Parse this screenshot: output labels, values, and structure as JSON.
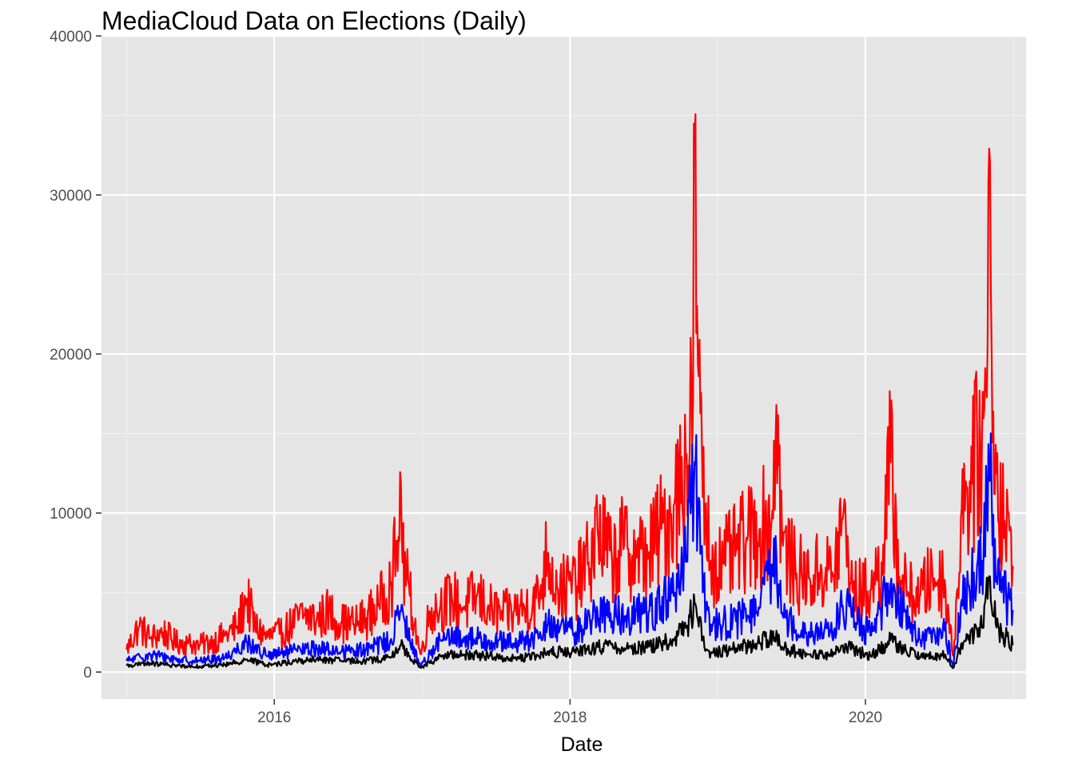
{
  "chart_data": {
    "type": "line",
    "title": "MediaCloud Data on Elections (Daily)",
    "xlabel": "Date",
    "ylabel": "",
    "xlim": [
      "2014-10-31",
      "2021-02-01"
    ],
    "ylim": [
      -1700,
      40000
    ],
    "x_ticks": [
      "2016",
      "2018",
      "2020"
    ],
    "y_ticks": [
      0,
      10000,
      20000,
      30000,
      40000
    ],
    "grid": true,
    "legend": "none",
    "series": [
      {
        "color": "#ff0000",
        "points": [
          [
            "2015-01-01",
            1400
          ],
          [
            "2015-02-01",
            2900
          ],
          [
            "2015-03-01",
            2100
          ],
          [
            "2015-04-01",
            2500
          ],
          [
            "2015-05-01",
            1900
          ],
          [
            "2015-06-01",
            1800
          ],
          [
            "2015-07-01",
            1700
          ],
          [
            "2015-08-01",
            1900
          ],
          [
            "2015-09-01",
            2300
          ],
          [
            "2015-10-01",
            2800
          ],
          [
            "2015-10-25",
            4700
          ],
          [
            "2015-11-15",
            2800
          ],
          [
            "2015-12-15",
            2200
          ],
          [
            "2016-01-15",
            2400
          ],
          [
            "2016-02-15",
            3000
          ],
          [
            "2016-03-15",
            3600
          ],
          [
            "2016-04-15",
            3300
          ],
          [
            "2016-05-15",
            3800
          ],
          [
            "2016-06-15",
            3100
          ],
          [
            "2016-07-15",
            3000
          ],
          [
            "2016-08-15",
            3400
          ],
          [
            "2016-09-15",
            4200
          ],
          [
            "2016-10-15",
            5500
          ],
          [
            "2016-11-03",
            8500
          ],
          [
            "2016-11-08",
            13600
          ],
          [
            "2016-11-12",
            7000
          ],
          [
            "2016-12-01",
            4800
          ],
          [
            "2016-12-28",
            1000
          ],
          [
            "2017-01-20",
            3800
          ],
          [
            "2017-02-15",
            4200
          ],
          [
            "2017-03-15",
            4600
          ],
          [
            "2017-04-15",
            4100
          ],
          [
            "2017-05-15",
            4800
          ],
          [
            "2017-06-15",
            4000
          ],
          [
            "2017-07-15",
            3600
          ],
          [
            "2017-08-15",
            3800
          ],
          [
            "2017-09-15",
            4100
          ],
          [
            "2017-10-15",
            4600
          ],
          [
            "2017-11-07",
            7600
          ],
          [
            "2017-12-01",
            5200
          ],
          [
            "2018-01-15",
            5500
          ],
          [
            "2018-02-15",
            6800
          ],
          [
            "2018-03-10",
            9000
          ],
          [
            "2018-04-15",
            7000
          ],
          [
            "2018-05-15",
            8000
          ],
          [
            "2018-06-15",
            7200
          ],
          [
            "2018-07-15",
            7500
          ],
          [
            "2018-08-15",
            9000
          ],
          [
            "2018-09-15",
            10500
          ],
          [
            "2018-10-15",
            13500
          ],
          [
            "2018-11-01",
            17000
          ],
          [
            "2018-11-06",
            38100
          ],
          [
            "2018-11-12",
            20000
          ],
          [
            "2018-11-25",
            11000
          ],
          [
            "2018-12-15",
            7000
          ],
          [
            "2019-01-15",
            6800
          ],
          [
            "2019-02-15",
            7600
          ],
          [
            "2019-03-15",
            8300
          ],
          [
            "2019-04-15",
            9000
          ],
          [
            "2019-05-15",
            9500
          ],
          [
            "2019-05-26",
            16800
          ],
          [
            "2019-06-10",
            8000
          ],
          [
            "2019-07-15",
            6200
          ],
          [
            "2019-08-15",
            5900
          ],
          [
            "2019-09-15",
            6400
          ],
          [
            "2019-10-15",
            6100
          ],
          [
            "2019-11-05",
            9800
          ],
          [
            "2019-12-01",
            5000
          ],
          [
            "2020-01-15",
            5200
          ],
          [
            "2020-02-10",
            6900
          ],
          [
            "2020-03-03",
            13200
          ],
          [
            "2020-03-25",
            6000
          ],
          [
            "2020-04-15",
            5000
          ],
          [
            "2020-05-15",
            4800
          ],
          [
            "2020-06-15",
            6000
          ],
          [
            "2020-07-15",
            5800
          ],
          [
            "2020-08-05",
            800
          ],
          [
            "2020-08-25",
            10200
          ],
          [
            "2020-09-15",
            12000
          ],
          [
            "2020-10-15",
            14500
          ],
          [
            "2020-10-28",
            17500
          ],
          [
            "2020-11-03",
            36000
          ],
          [
            "2020-11-07",
            20500
          ],
          [
            "2020-11-20",
            12500
          ],
          [
            "2020-12-10",
            9500
          ],
          [
            "2020-12-31",
            6500
          ]
        ]
      },
      {
        "color": "#0000ff",
        "points": [
          [
            "2015-01-01",
            700
          ],
          [
            "2015-03-01",
            1100
          ],
          [
            "2015-05-01",
            800
          ],
          [
            "2015-07-01",
            700
          ],
          [
            "2015-09-01",
            900
          ],
          [
            "2015-10-25",
            1900
          ],
          [
            "2015-12-15",
            1000
          ],
          [
            "2016-02-15",
            1300
          ],
          [
            "2016-04-15",
            1500
          ],
          [
            "2016-06-15",
            1300
          ],
          [
            "2016-08-15",
            1400
          ],
          [
            "2016-10-15",
            2000
          ],
          [
            "2016-11-08",
            3900
          ],
          [
            "2016-12-01",
            2000
          ],
          [
            "2016-12-28",
            400
          ],
          [
            "2017-02-15",
            2000
          ],
          [
            "2017-04-15",
            2200
          ],
          [
            "2017-06-15",
            2000
          ],
          [
            "2017-08-15",
            1800
          ],
          [
            "2017-10-15",
            2100
          ],
          [
            "2017-11-07",
            3000
          ],
          [
            "2018-01-15",
            2500
          ],
          [
            "2018-03-10",
            3800
          ],
          [
            "2018-05-15",
            3500
          ],
          [
            "2018-07-15",
            3800
          ],
          [
            "2018-09-15",
            4800
          ],
          [
            "2018-10-15",
            7000
          ],
          [
            "2018-11-06",
            13500
          ],
          [
            "2018-11-25",
            5000
          ],
          [
            "2018-12-15",
            3000
          ],
          [
            "2019-02-15",
            3200
          ],
          [
            "2019-04-15",
            4000
          ],
          [
            "2019-05-26",
            7300
          ],
          [
            "2019-06-10",
            3500
          ],
          [
            "2019-08-15",
            2500
          ],
          [
            "2019-10-15",
            2600
          ],
          [
            "2019-11-05",
            4200
          ],
          [
            "2020-01-15",
            2300
          ],
          [
            "2020-03-03",
            5500
          ],
          [
            "2020-05-15",
            2000
          ],
          [
            "2020-07-15",
            2600
          ],
          [
            "2020-08-05",
            300
          ],
          [
            "2020-08-25",
            4500
          ],
          [
            "2020-10-15",
            7000
          ],
          [
            "2020-11-03",
            12400
          ],
          [
            "2020-11-20",
            6000
          ],
          [
            "2020-12-31",
            3800
          ]
        ]
      },
      {
        "color": "#000000",
        "points": [
          [
            "2015-01-01",
            400
          ],
          [
            "2015-03-01",
            550
          ],
          [
            "2015-05-01",
            400
          ],
          [
            "2015-07-01",
            350
          ],
          [
            "2015-09-01",
            450
          ],
          [
            "2015-10-25",
            800
          ],
          [
            "2015-12-15",
            450
          ],
          [
            "2016-02-15",
            650
          ],
          [
            "2016-04-15",
            800
          ],
          [
            "2016-06-15",
            700
          ],
          [
            "2016-08-15",
            700
          ],
          [
            "2016-10-15",
            900
          ],
          [
            "2016-11-08",
            1700
          ],
          [
            "2016-12-01",
            1000
          ],
          [
            "2016-12-28",
            250
          ],
          [
            "2017-02-15",
            1000
          ],
          [
            "2017-04-15",
            1100
          ],
          [
            "2017-06-15",
            1000
          ],
          [
            "2017-08-15",
            850
          ],
          [
            "2017-10-15",
            1000
          ],
          [
            "2017-11-07",
            1300
          ],
          [
            "2018-01-15",
            1200
          ],
          [
            "2018-03-10",
            1600
          ],
          [
            "2018-05-15",
            1500
          ],
          [
            "2018-07-15",
            1600
          ],
          [
            "2018-09-15",
            2000
          ],
          [
            "2018-10-15",
            2800
          ],
          [
            "2018-11-06",
            4400
          ],
          [
            "2018-11-25",
            2000
          ],
          [
            "2018-12-15",
            1200
          ],
          [
            "2019-02-15",
            1500
          ],
          [
            "2019-04-15",
            1800
          ],
          [
            "2019-05-26",
            2600
          ],
          [
            "2019-06-10",
            1500
          ],
          [
            "2019-08-15",
            1100
          ],
          [
            "2019-10-15",
            1100
          ],
          [
            "2019-11-05",
            1700
          ],
          [
            "2020-01-15",
            1000
          ],
          [
            "2020-03-03",
            2000
          ],
          [
            "2020-05-15",
            900
          ],
          [
            "2020-07-15",
            1100
          ],
          [
            "2020-08-05",
            200
          ],
          [
            "2020-08-25",
            1800
          ],
          [
            "2020-10-15",
            2800
          ],
          [
            "2020-11-03",
            6200
          ],
          [
            "2020-11-20",
            2800
          ],
          [
            "2020-12-31",
            1700
          ]
        ]
      }
    ]
  }
}
